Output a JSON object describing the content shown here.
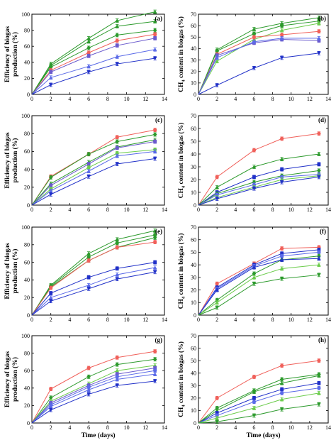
{
  "colors": {
    "red": "#f0605a",
    "green_dark": "#2c9a2c",
    "green_light": "#6ccc4c",
    "blue_dark": "#2030c8",
    "blue_light": "#5a6ae8",
    "purple": "#6a5acd"
  },
  "common": {
    "xlabel": "Time (days)",
    "ylabel_left_line1": "Efficiency of biogas",
    "ylabel_left_line2": "production (%)",
    "ylabel_right_ch": "CH",
    "ylabel_right_sub": "4",
    "ylabel_right_rest": " content in biogas (%)"
  },
  "chart_data": [
    {
      "panel": "(a)",
      "type": "line",
      "xlim": [
        0,
        14
      ],
      "ylim": [
        0,
        100
      ],
      "xticks": [
        0,
        2,
        4,
        6,
        8,
        10,
        12,
        14
      ],
      "yticks": [
        0,
        20,
        40,
        60,
        80,
        100
      ],
      "x": [
        0,
        2,
        6,
        9,
        13
      ],
      "series": [
        {
          "color": "green_dark",
          "marker": "triangle-up",
          "values": [
            0,
            38,
            70,
            92,
            103
          ]
        },
        {
          "color": "green_dark",
          "marker": "triangle-up",
          "values": [
            0,
            36,
            66,
            85,
            91
          ]
        },
        {
          "color": "green_dark",
          "marker": "diamond",
          "values": [
            0,
            34,
            58,
            74,
            80
          ]
        },
        {
          "color": "red",
          "marker": "circle",
          "values": [
            0,
            30,
            52,
            67,
            75
          ]
        },
        {
          "color": "purple",
          "marker": "square",
          "values": [
            0,
            28,
            48,
            61,
            70
          ]
        },
        {
          "color": "blue_light",
          "marker": "triangle-up",
          "values": [
            0,
            21,
            35,
            47,
            56
          ]
        },
        {
          "color": "blue_dark",
          "marker": "triangle-down",
          "values": [
            0,
            12,
            28,
            38,
            45
          ]
        }
      ]
    },
    {
      "panel": "(b)",
      "type": "line",
      "xlim": [
        0,
        14
      ],
      "ylim": [
        0,
        70
      ],
      "xticks": [
        0,
        2,
        4,
        6,
        8,
        10,
        12,
        14
      ],
      "yticks": [
        0,
        10,
        20,
        30,
        40,
        50,
        60,
        70
      ],
      "x": [
        0,
        2,
        6,
        9,
        13
      ],
      "series": [
        {
          "color": "green_dark",
          "marker": "triangle-up",
          "values": [
            0,
            39,
            57,
            62,
            67
          ]
        },
        {
          "color": "green_dark",
          "marker": "circle",
          "values": [
            0,
            38,
            53,
            60,
            64
          ]
        },
        {
          "color": "green_light",
          "marker": "triangle-up",
          "values": [
            0,
            29,
            48,
            56,
            62
          ]
        },
        {
          "color": "red",
          "marker": "circle",
          "values": [
            0,
            35,
            50,
            52,
            55
          ]
        },
        {
          "color": "purple",
          "marker": "square",
          "values": [
            0,
            34,
            45,
            48,
            47
          ]
        },
        {
          "color": "blue_light",
          "marker": "triangle-up",
          "values": [
            0,
            32,
            46,
            49,
            49
          ]
        },
        {
          "color": "blue_dark",
          "marker": "triangle-down",
          "values": [
            0,
            8,
            23,
            32,
            36
          ]
        }
      ]
    },
    {
      "panel": "(c)",
      "type": "line",
      "xlim": [
        0,
        14
      ],
      "ylim": [
        0,
        100
      ],
      "xticks": [
        0,
        2,
        4,
        6,
        8,
        10,
        12,
        14
      ],
      "yticks": [
        0,
        20,
        40,
        60,
        80,
        100
      ],
      "x": [
        0,
        2,
        6,
        9,
        13
      ],
      "series": [
        {
          "color": "red",
          "marker": "circle",
          "values": [
            0,
            32,
            57,
            76,
            84
          ]
        },
        {
          "color": "green_dark",
          "marker": "diamond",
          "values": [
            0,
            31,
            57,
            71,
            79
          ]
        },
        {
          "color": "green_dark",
          "marker": "triangle-up",
          "values": [
            0,
            24,
            48,
            65,
            73
          ]
        },
        {
          "color": "purple",
          "marker": "square",
          "values": [
            0,
            22,
            46,
            64,
            71
          ]
        },
        {
          "color": "green_light",
          "marker": "circle",
          "values": [
            0,
            18,
            42,
            58,
            62
          ]
        },
        {
          "color": "blue_light",
          "marker": "triangle-up",
          "values": [
            0,
            16,
            38,
            55,
            60
          ]
        },
        {
          "color": "blue_dark",
          "marker": "triangle-down",
          "values": [
            0,
            12,
            32,
            46,
            52
          ]
        }
      ]
    },
    {
      "panel": "(d)",
      "type": "line",
      "xlim": [
        0,
        14
      ],
      "ylim": [
        0,
        70
      ],
      "xticks": [
        0,
        2,
        4,
        6,
        8,
        10,
        12,
        14
      ],
      "yticks": [
        0,
        10,
        20,
        30,
        40,
        50,
        60,
        70
      ],
      "x": [
        0,
        2,
        6,
        9,
        13
      ],
      "series": [
        {
          "color": "red",
          "marker": "circle",
          "values": [
            0,
            22,
            43,
            52,
            56
          ]
        },
        {
          "color": "green_dark",
          "marker": "triangle-up",
          "values": [
            0,
            14,
            30,
            36,
            40
          ]
        },
        {
          "color": "blue_dark",
          "marker": "square",
          "values": [
            0,
            10,
            22,
            28,
            32
          ]
        },
        {
          "color": "green_dark",
          "marker": "diamond",
          "values": [
            0,
            9,
            18,
            23,
            27
          ]
        },
        {
          "color": "blue_light",
          "marker": "circle",
          "values": [
            0,
            8,
            16,
            22,
            24
          ]
        },
        {
          "color": "green_light",
          "marker": "triangle-up",
          "values": [
            0,
            6,
            14,
            20,
            23
          ]
        },
        {
          "color": "blue_dark",
          "marker": "triangle-down",
          "values": [
            0,
            5,
            13,
            18,
            22
          ]
        }
      ]
    },
    {
      "panel": "(e)",
      "type": "line",
      "xlim": [
        0,
        14
      ],
      "ylim": [
        0,
        100
      ],
      "xticks": [
        0,
        2,
        4,
        6,
        8,
        10,
        12,
        14
      ],
      "yticks": [
        0,
        20,
        40,
        60,
        80,
        100
      ],
      "x": [
        0,
        2,
        6,
        9,
        13
      ],
      "series": [
        {
          "color": "green_dark",
          "marker": "triangle-up",
          "values": [
            0,
            34,
            70,
            86,
            96
          ]
        },
        {
          "color": "green_dark",
          "marker": "circle",
          "values": [
            0,
            33,
            66,
            82,
            91
          ]
        },
        {
          "color": "green_dark",
          "marker": "diamond",
          "values": [
            0,
            32,
            62,
            77,
            88
          ]
        },
        {
          "color": "red",
          "marker": "circle",
          "values": [
            0,
            31,
            62,
            77,
            83
          ]
        },
        {
          "color": "blue_dark",
          "marker": "square",
          "values": [
            0,
            25,
            43,
            53,
            60
          ]
        },
        {
          "color": "blue_light",
          "marker": "triangle-up",
          "values": [
            0,
            20,
            34,
            46,
            54
          ]
        },
        {
          "color": "blue_dark",
          "marker": "triangle-down",
          "values": [
            0,
            16,
            30,
            41,
            49
          ]
        }
      ]
    },
    {
      "panel": "(f)",
      "type": "line",
      "xlim": [
        0,
        14
      ],
      "ylim": [
        0,
        70
      ],
      "xticks": [
        0,
        2,
        4,
        6,
        8,
        10,
        12,
        14
      ],
      "yticks": [
        0,
        10,
        20,
        30,
        40,
        50,
        60,
        70
      ],
      "x": [
        0,
        2,
        6,
        9,
        13
      ],
      "series": [
        {
          "color": "red",
          "marker": "circle",
          "values": [
            0,
            25,
            41,
            53,
            54
          ]
        },
        {
          "color": "blue_dark",
          "marker": "square",
          "values": [
            0,
            22,
            40,
            49,
            52
          ]
        },
        {
          "color": "blue_light",
          "marker": "circle",
          "values": [
            0,
            21,
            39,
            47,
            50
          ]
        },
        {
          "color": "green_dark",
          "marker": "diamond",
          "values": [
            0,
            12,
            33,
            44,
            47
          ]
        },
        {
          "color": "blue_dark",
          "marker": "triangle-up",
          "values": [
            0,
            20,
            38,
            44,
            45
          ]
        },
        {
          "color": "green_light",
          "marker": "triangle-up",
          "values": [
            0,
            10,
            30,
            37,
            40
          ]
        },
        {
          "color": "green_dark",
          "marker": "triangle-down",
          "values": [
            0,
            6,
            25,
            29,
            32
          ]
        }
      ]
    },
    {
      "panel": "(g)",
      "type": "line",
      "xlim": [
        0,
        14
      ],
      "ylim": [
        0,
        100
      ],
      "xticks": [
        0,
        2,
        4,
        6,
        8,
        10,
        12,
        14
      ],
      "yticks": [
        0,
        20,
        40,
        60,
        80,
        100
      ],
      "x": [
        0,
        2,
        6,
        9,
        13
      ],
      "series": [
        {
          "color": "red",
          "marker": "circle",
          "values": [
            0,
            39,
            63,
            75,
            82
          ]
        },
        {
          "color": "green_dark",
          "marker": "diamond",
          "values": [
            0,
            29,
            53,
            67,
            73
          ]
        },
        {
          "color": "green_light",
          "marker": "triangle-up",
          "values": [
            0,
            25,
            45,
            60,
            66
          ]
        },
        {
          "color": "purple",
          "marker": "square",
          "values": [
            0,
            23,
            43,
            56,
            63
          ]
        },
        {
          "color": "blue_light",
          "marker": "circle",
          "values": [
            0,
            21,
            41,
            53,
            60
          ]
        },
        {
          "color": "blue_light",
          "marker": "triangle-up",
          "values": [
            0,
            19,
            38,
            50,
            56
          ]
        },
        {
          "color": "blue_dark",
          "marker": "triangle-down",
          "values": [
            0,
            15,
            33,
            43,
            48
          ]
        }
      ]
    },
    {
      "panel": "(h)",
      "type": "line",
      "xlim": [
        0,
        14
      ],
      "ylim": [
        0,
        70
      ],
      "xticks": [
        0,
        2,
        4,
        6,
        8,
        10,
        12,
        14
      ],
      "yticks": [
        0,
        10,
        20,
        30,
        40,
        50,
        60,
        70
      ],
      "x": [
        0,
        2,
        6,
        9,
        13
      ],
      "series": [
        {
          "color": "red",
          "marker": "circle",
          "values": [
            0,
            20,
            37,
            46,
            50
          ]
        },
        {
          "color": "green_dark",
          "marker": "diamond",
          "values": [
            0,
            12,
            26,
            35,
            39
          ]
        },
        {
          "color": "green_dark",
          "marker": "triangle-up",
          "values": [
            0,
            10,
            25,
            32,
            38
          ]
        },
        {
          "color": "blue_dark",
          "marker": "square",
          "values": [
            0,
            8,
            20,
            27,
            32
          ]
        },
        {
          "color": "blue_light",
          "marker": "circle",
          "values": [
            0,
            6,
            17,
            24,
            28
          ]
        },
        {
          "color": "green_light",
          "marker": "triangle-up",
          "values": [
            0,
            4,
            12,
            19,
            24
          ]
        },
        {
          "color": "green_dark",
          "marker": "triangle-down",
          "values": [
            0,
            1,
            6,
            11,
            15
          ]
        }
      ]
    }
  ]
}
